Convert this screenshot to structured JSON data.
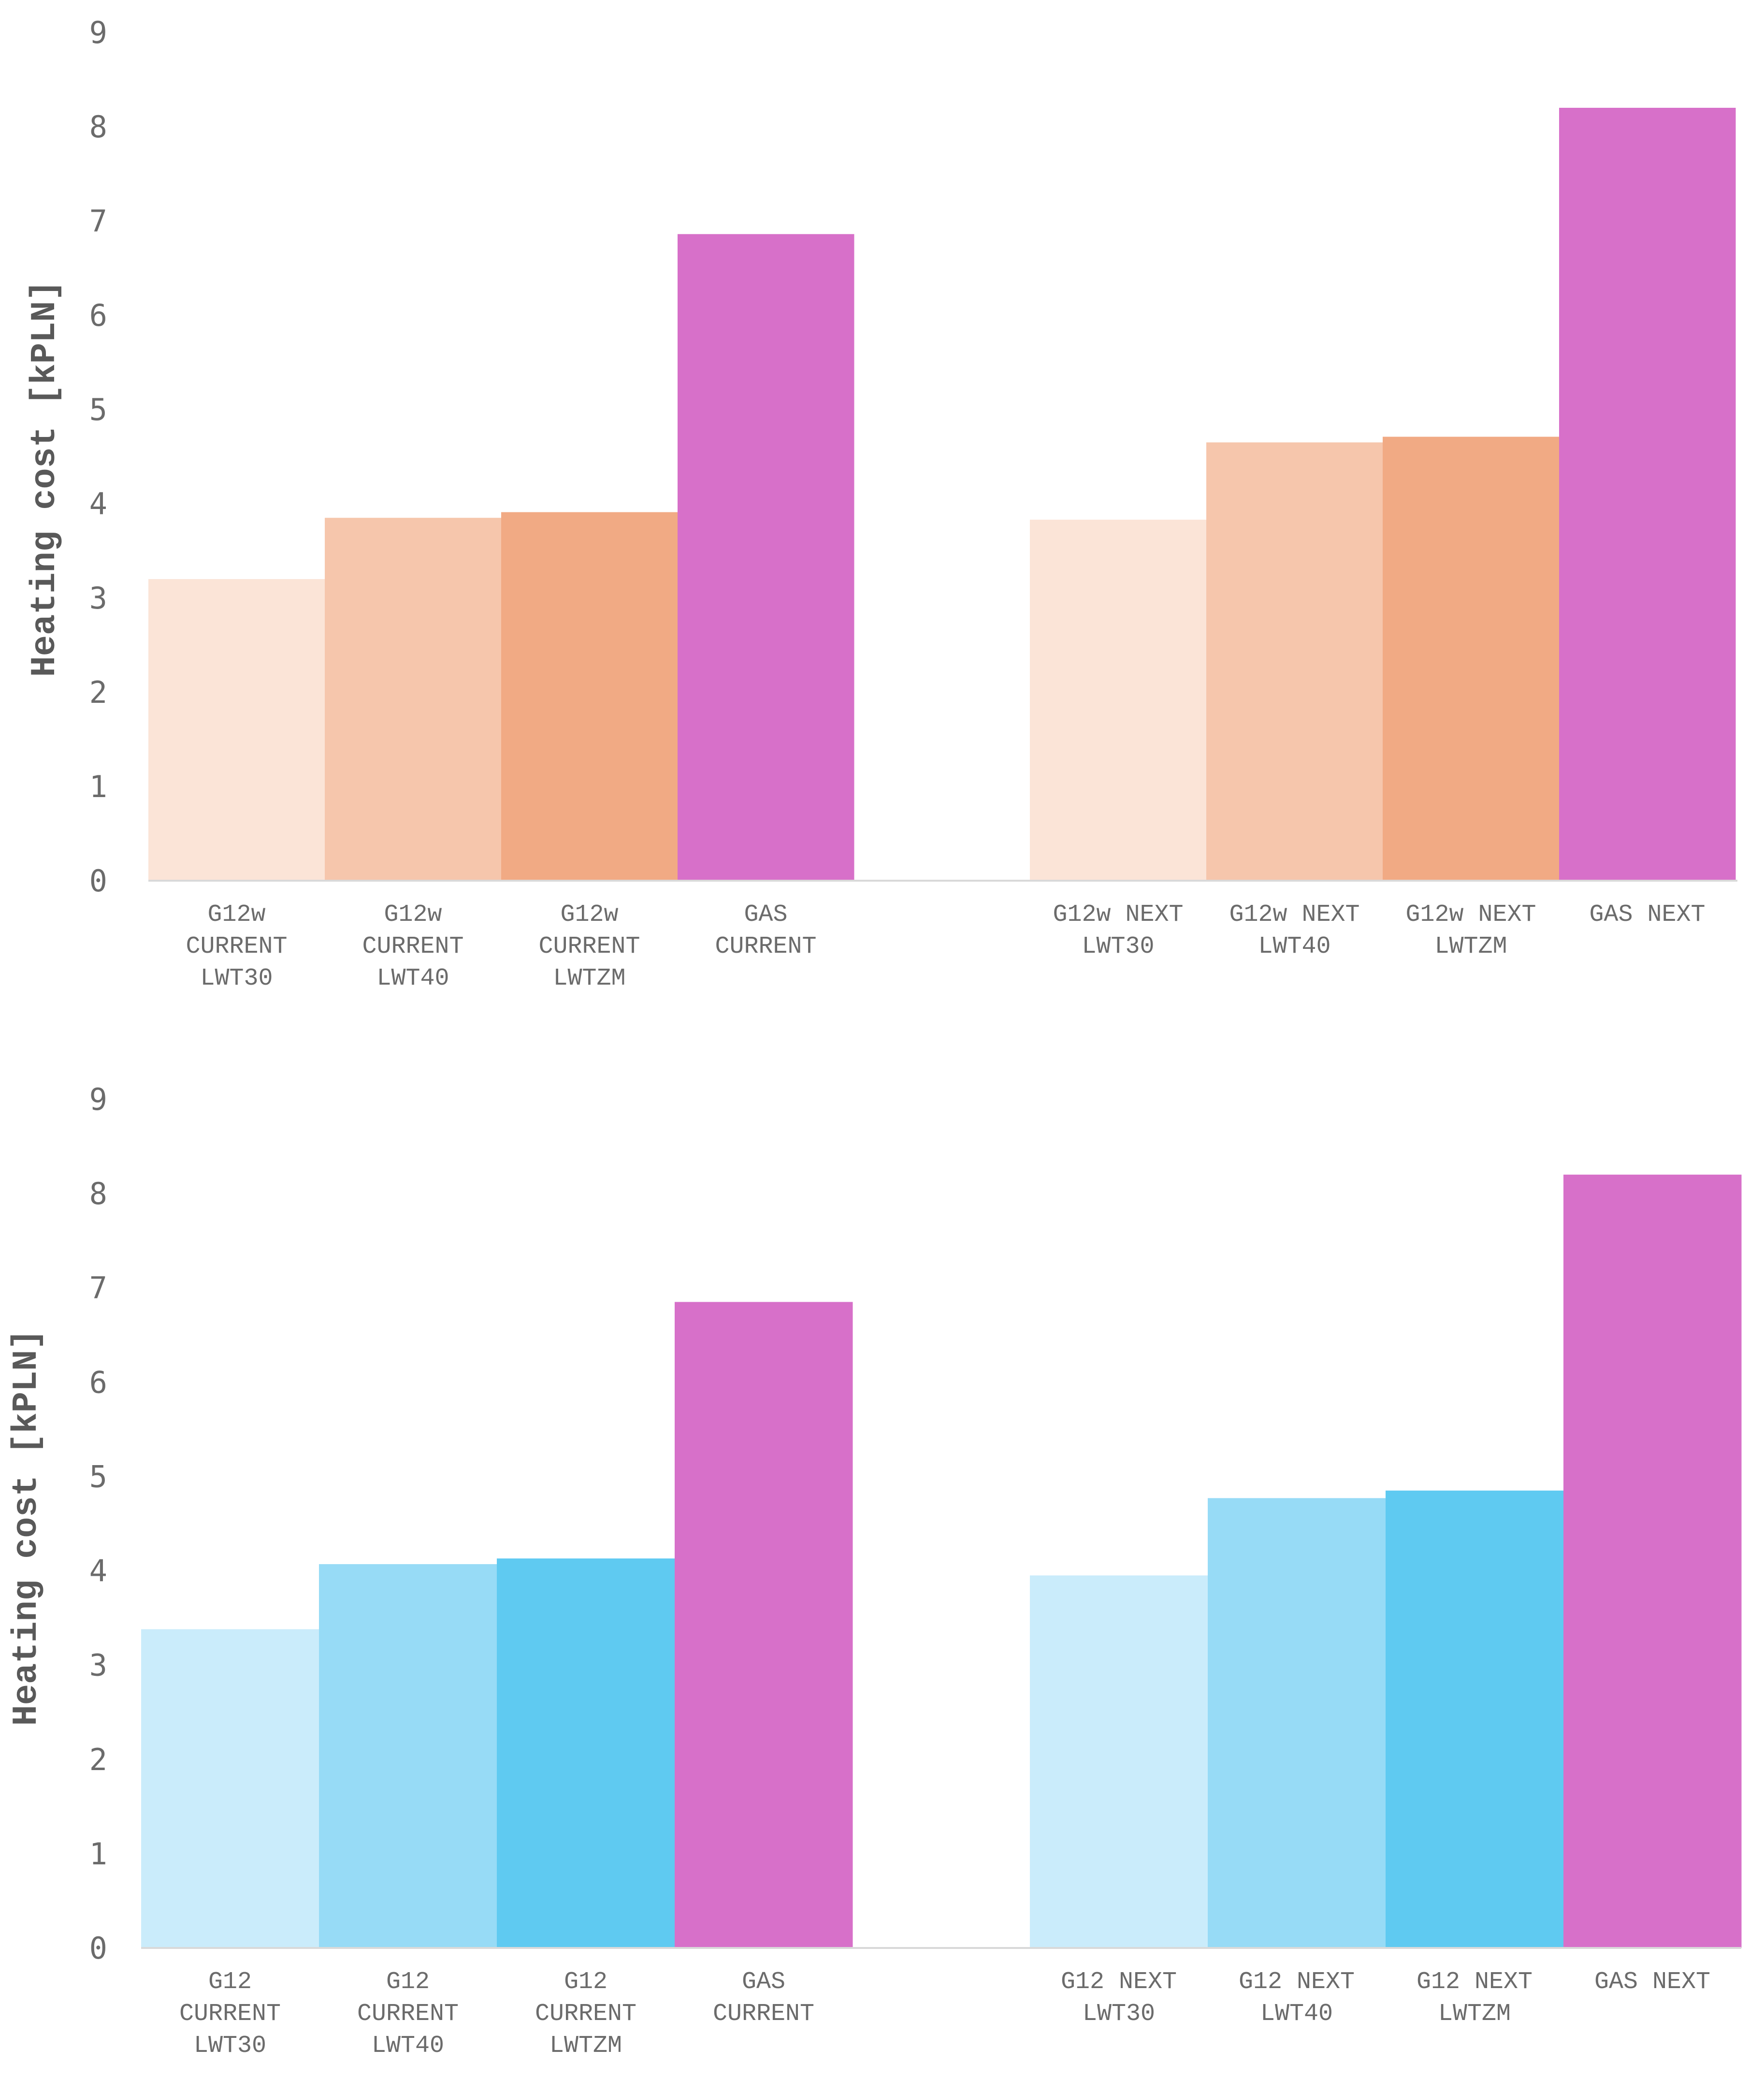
{
  "chart_data": [
    {
      "type": "bar",
      "ylabel": "Heating cost [kPLN]",
      "ylim": [
        0,
        9
      ],
      "yticks": [
        "0",
        "1",
        "2",
        "3",
        "4",
        "5",
        "6",
        "7",
        "8",
        "9"
      ],
      "grid": false,
      "groups": [
        {
          "categories": [
            [
              "G12w",
              "CURRENT",
              "LWT30"
            ],
            [
              "G12w",
              "CURRENT",
              "LWT40"
            ],
            [
              "G12w",
              "CURRENT",
              "LWTZM"
            ],
            [
              "GAS",
              "CURRENT"
            ]
          ],
          "values": [
            3.2,
            3.85,
            3.91,
            6.86
          ],
          "colors": [
            "#fbe4d7",
            "#f6c6ac",
            "#f1aa84",
            "#d770c9"
          ]
        },
        {
          "categories": [
            [
              "G12w NEXT",
              "LWT30"
            ],
            [
              "G12w NEXT",
              "LWT40"
            ],
            [
              "G12w NEXT",
              "LWTZM"
            ],
            [
              "GAS NEXT"
            ]
          ],
          "values": [
            3.83,
            4.65,
            4.71,
            8.2
          ],
          "colors": [
            "#fbe4d7",
            "#f6c6ac",
            "#f1aa84",
            "#d770c9"
          ]
        }
      ]
    },
    {
      "type": "bar",
      "ylabel": "Heating cost [kPLN]",
      "ylim": [
        0,
        9
      ],
      "yticks": [
        "0",
        "1",
        "2",
        "3",
        "4",
        "5",
        "6",
        "7",
        "8",
        "9"
      ],
      "grid": false,
      "groups": [
        {
          "categories": [
            [
              "G12",
              "CURRENT",
              "LWT30"
            ],
            [
              "G12",
              "CURRENT",
              "LWT40"
            ],
            [
              "G12",
              "CURRENT",
              "LWTZM"
            ],
            [
              "GAS",
              "CURRENT"
            ]
          ],
          "values": [
            3.38,
            4.07,
            4.13,
            6.85
          ],
          "colors": [
            "#caecfb",
            "#97dbf6",
            "#5fcaf1",
            "#d770c9"
          ]
        },
        {
          "categories": [
            [
              "G12 NEXT",
              "LWT30"
            ],
            [
              "G12 NEXT",
              "LWT40"
            ],
            [
              "G12 NEXT",
              "LWTZM"
            ],
            [
              "GAS NEXT"
            ]
          ],
          "values": [
            3.95,
            4.77,
            4.85,
            8.2
          ],
          "colors": [
            "#caecfb",
            "#97dbf6",
            "#5fcaf1",
            "#d770c9"
          ]
        }
      ]
    }
  ]
}
